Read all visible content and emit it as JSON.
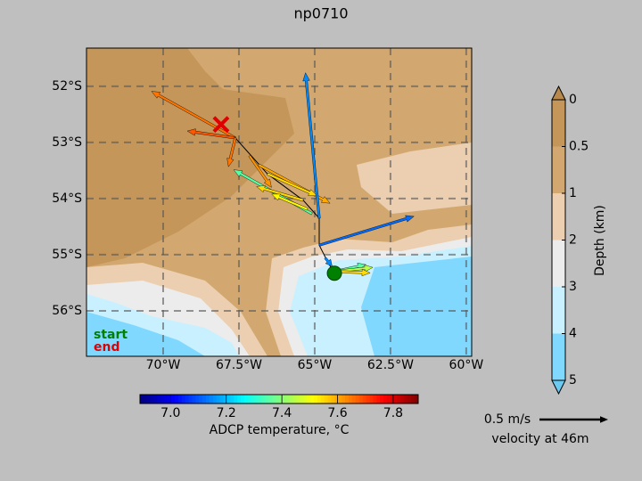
{
  "chart_data": {
    "type": "quiver_map",
    "title": "np0710",
    "xlim": [
      -72.53,
      -59.82
    ],
    "ylim": [
      -51.32,
      -56.81
    ],
    "xticks": [
      {
        "value": -70,
        "label": "70°W"
      },
      {
        "value": -67.5,
        "label": "67.5°W"
      },
      {
        "value": -65,
        "label": "65°W"
      },
      {
        "value": -62.5,
        "label": "62.5°W"
      },
      {
        "value": -60,
        "label": "60°W"
      }
    ],
    "yticks": [
      {
        "value": -52,
        "label": "52°S"
      },
      {
        "value": -53,
        "label": "53°S"
      },
      {
        "value": -54,
        "label": "54°S"
      },
      {
        "value": -55,
        "label": "55°S"
      },
      {
        "value": -56,
        "label": "56°S"
      }
    ],
    "track": {
      "color": "#000000",
      "lon": [
        -67.62,
        -66.56,
        -65.38,
        -64.85,
        -64.85,
        -64.56,
        -64.35
      ],
      "lat": [
        -52.92,
        -53.56,
        -54.03,
        -54.35,
        -54.83,
        -55.14,
        -55.33
      ]
    },
    "arrows": {
      "lon": [
        -67.62,
        -67.62,
        -67.62,
        -67.15,
        -66.85,
        -66.56,
        -65.09,
        -65.38,
        -65.24,
        -64.85,
        -64.85,
        -64.65,
        -64.35,
        -64.35,
        -64.35
      ],
      "lat": [
        -52.92,
        -52.92,
        -52.92,
        -53.24,
        -53.4,
        -53.56,
        -54.27,
        -54.03,
        -54.19,
        -54.35,
        -54.83,
        -55.06,
        -55.3,
        -55.3,
        -55.3
      ],
      "u": [
        -0.61,
        -0.35,
        -0.05,
        0.16,
        0.52,
        0.36,
        -0.57,
        -0.34,
        -0.26,
        -0.1,
        0.69,
        0.05,
        0.23,
        0.28,
        0.26
      ],
      "v": [
        0.34,
        0.05,
        -0.21,
        -0.23,
        -0.28,
        -0.16,
        0.32,
        0.1,
        0.11,
        1.06,
        0.21,
        -0.06,
        0.05,
        0.03,
        -0.01
      ],
      "temperature": [
        7.65,
        7.68,
        7.65,
        7.62,
        7.6,
        7.55,
        7.35,
        7.55,
        7.52,
        7.15,
        7.12,
        7.15,
        7.35,
        7.45,
        7.55
      ]
    },
    "markers": [
      {
        "name": "start",
        "color": "#008000",
        "lon": -64.35,
        "lat": -55.33
      },
      {
        "name": "end",
        "color": "#e00000",
        "lon": -68.09,
        "lat": -52.68
      }
    ],
    "temperature_colorbar": {
      "label": "ADCP temperature, °C",
      "lim": [
        6.89,
        7.89
      ],
      "ticks": [
        {
          "value": 7,
          "label": "7.0"
        },
        7.2,
        7.4,
        7.6,
        7.8
      ]
    },
    "depth_colorbar": {
      "label": "Depth (km)",
      "levels": [
        0,
        0.5,
        1,
        2,
        3,
        4,
        5
      ],
      "colors": [
        "#c4965a",
        "#d2a870",
        "#ebcfb0",
        "#ececec",
        "#c8f0ff",
        "#80d8ff"
      ],
      "extend_colors": [
        "#b8894d",
        "#6ccaf0"
      ]
    },
    "velocity_key": {
      "value": 0.5,
      "label": "0.5 m/s",
      "caption": "velocity at 46m"
    }
  }
}
